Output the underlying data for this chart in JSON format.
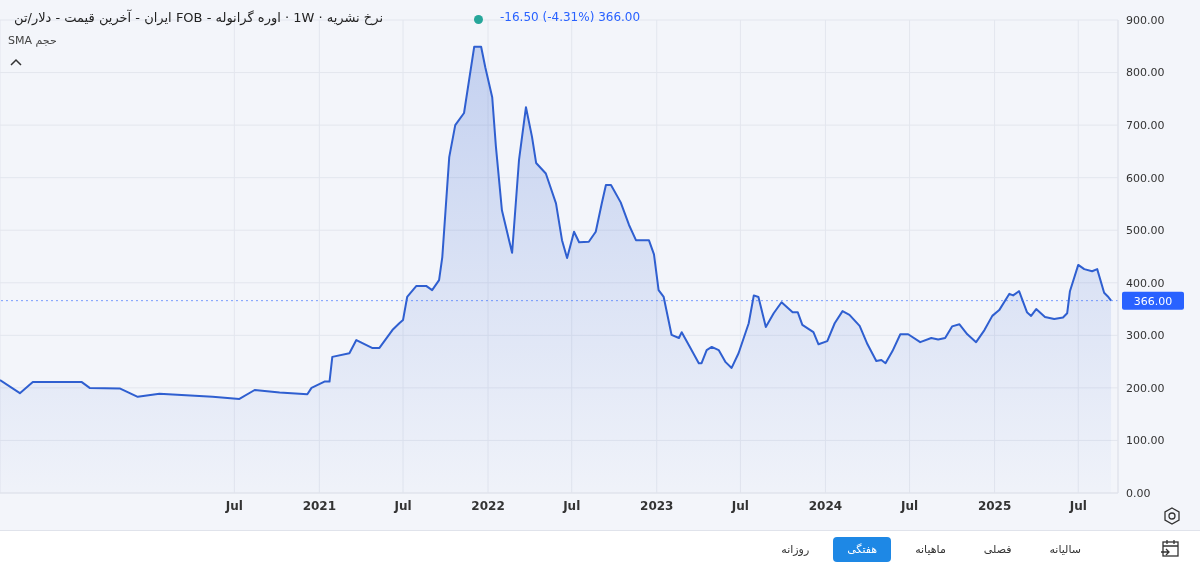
{
  "chart_data": {
    "type": "area",
    "title": "نرخ نشریه · 1W · اوره گرانوله - FOB ایران - آخرین قیمت - دلار/تن",
    "annotations": [
      "-16.50 (-4.31%) 366.00",
      "SMA",
      "حجم",
      "روزانه",
      "هفتگی",
      "ماهیانه",
      "فصلی",
      "سالیانه"
    ],
    "x": [
      "2019-02-10",
      "2019-03-25",
      "2019-04-22",
      "2019-08-06",
      "2019-08-23",
      "2019-10-27",
      "2019-12-05",
      "2020-01-21",
      "2020-05-15",
      "2020-07-12",
      "2020-08-14",
      "2020-10-07",
      "2020-12-06",
      "2020-12-15",
      "2021-01-12",
      "2021-01-23",
      "2021-01-29",
      "2021-03-07",
      "2021-03-22",
      "2021-04-25",
      "2021-05-11",
      "2021-06-08",
      "2021-06-23",
      "2021-07-01",
      "2021-07-10",
      "2021-07-30",
      "2021-08-20",
      "2021-09-02",
      "2021-09-17",
      "2021-09-24",
      "2021-10-09",
      "2021-10-22",
      "2021-11-10",
      "2021-12-02",
      "2021-12-17",
      "2021-12-26",
      "2022-01-10",
      "2022-01-18",
      "2022-01-31",
      "2022-02-22",
      "2022-03-09",
      "2022-03-24",
      "2022-04-06",
      "2022-04-15",
      "2022-05-06",
      "2022-05-28",
      "2022-06-10",
      "2022-06-21",
      "2022-07-06",
      "2022-07-17",
      "2022-08-07",
      "2022-08-22",
      "2022-09-04",
      "2022-09-13",
      "2022-09-24",
      "2022-10-15",
      "2022-11-02",
      "2022-11-17",
      "2022-12-15",
      "2022-12-26",
      "2023-01-05",
      "2023-01-16",
      "2023-02-02",
      "2023-02-18",
      "2023-02-24",
      "2023-03-11",
      "2023-04-02",
      "2023-04-08",
      "2023-04-19",
      "2023-04-30",
      "2023-05-15",
      "2023-05-30",
      "2023-06-12",
      "2023-06-27",
      "2023-07-19",
      "2023-07-30",
      "2023-08-09",
      "2023-08-25",
      "2023-09-11",
      "2023-09-28",
      "2023-10-22",
      "2023-11-02",
      "2023-11-12",
      "2023-12-06",
      "2023-12-17",
      "2024-01-05",
      "2024-01-21",
      "2024-02-07",
      "2024-02-22",
      "2024-03-15",
      "2024-04-01",
      "2024-04-20",
      "2024-05-01",
      "2024-05-10",
      "2024-05-25",
      "2024-06-11",
      "2024-06-28",
      "2024-07-24",
      "2024-08-17",
      "2024-09-01",
      "2024-09-16",
      "2024-10-01",
      "2024-10-17",
      "2024-11-03",
      "2024-11-22",
      "2024-12-10",
      "2024-12-27",
      "2025-01-11",
      "2025-02-02",
      "2025-02-10",
      "2025-02-23",
      "2025-03-12",
      "2025-03-21",
      "2025-04-01",
      "2025-04-20",
      "2025-05-10",
      "2025-05-29",
      "2025-06-07",
      "2025-06-13",
      "2025-07-01",
      "2025-07-14",
      "2025-07-31",
      "2025-08-11",
      "2025-08-26",
      "2025-09-03",
      "2025-09-10"
    ],
    "series": [
      {
        "color": "#2f5fd0",
        "values": [
          215,
          190,
          211,
          211,
          200,
          199,
          183,
          189,
          183,
          179,
          196,
          191,
          188,
          200,
          212,
          212,
          259,
          266,
          291,
          276,
          276,
          310,
          323,
          329,
          373,
          394,
          394,
          386,
          405,
          449,
          639,
          700,
          723,
          849,
          849,
          810,
          753,
          659,
          538,
          457,
          634,
          734,
          678,
          628,
          608,
          551,
          481,
          447,
          497,
          477,
          478,
          497,
          551,
          586,
          586,
          553,
          510,
          481,
          481,
          454,
          386,
          373,
          301,
          295,
          306,
          282,
          247,
          247,
          272,
          278,
          272,
          249,
          238,
          266,
          323,
          376,
          373,
          316,
          342,
          363,
          344,
          344,
          320,
          306,
          283,
          289,
          323,
          346,
          339,
          318,
          283,
          251,
          253,
          247,
          270,
          302,
          302,
          287,
          295,
          292,
          295,
          317,
          321,
          302,
          287,
          310,
          337,
          348,
          379,
          376,
          384,
          344,
          337,
          350,
          335,
          331,
          334,
          342,
          384,
          434,
          426,
          422,
          426,
          381,
          374,
          366
        ]
      }
    ],
    "xlim": [
      "2019-02-10",
      "2025-09-25"
    ],
    "xticks": [
      {
        "value": "2020-07-01",
        "label": "Jul"
      },
      {
        "value": "2021-01-01",
        "label": "2021"
      },
      {
        "value": "2021-07-01",
        "label": "Jul"
      },
      {
        "value": "2022-01-01",
        "label": "2022"
      },
      {
        "value": "2022-07-01",
        "label": "Jul"
      },
      {
        "value": "2023-01-01",
        "label": "2023"
      },
      {
        "value": "2023-07-01",
        "label": "Jul"
      },
      {
        "value": "2024-01-01",
        "label": "2024"
      },
      {
        "value": "2024-07-01",
        "label": "Jul"
      },
      {
        "value": "2025-01-01",
        "label": "2025"
      },
      {
        "value": "2025-07-01",
        "label": "Jul"
      }
    ],
    "ylim": [
      0,
      900
    ],
    "yticks": [
      {
        "value": 0,
        "label": "0.00"
      },
      {
        "value": 100,
        "label": "100.00"
      },
      {
        "value": 200,
        "label": "200.00"
      },
      {
        "value": 300,
        "label": "300.00"
      },
      {
        "value": 400,
        "label": "400.00"
      },
      {
        "value": 500,
        "label": "500.00"
      },
      {
        "value": 600,
        "label": "600.00"
      },
      {
        "value": 700,
        "label": "700.00"
      },
      {
        "value": 800,
        "label": "800.00"
      },
      {
        "value": 900,
        "label": "900.00"
      }
    ],
    "ref_lines": [
      {
        "axis": "y",
        "value": 366,
        "label": "366.00",
        "color": "#2962ff",
        "line_style": "dotted"
      }
    ],
    "grid": true,
    "line_style": "solid"
  }
}
